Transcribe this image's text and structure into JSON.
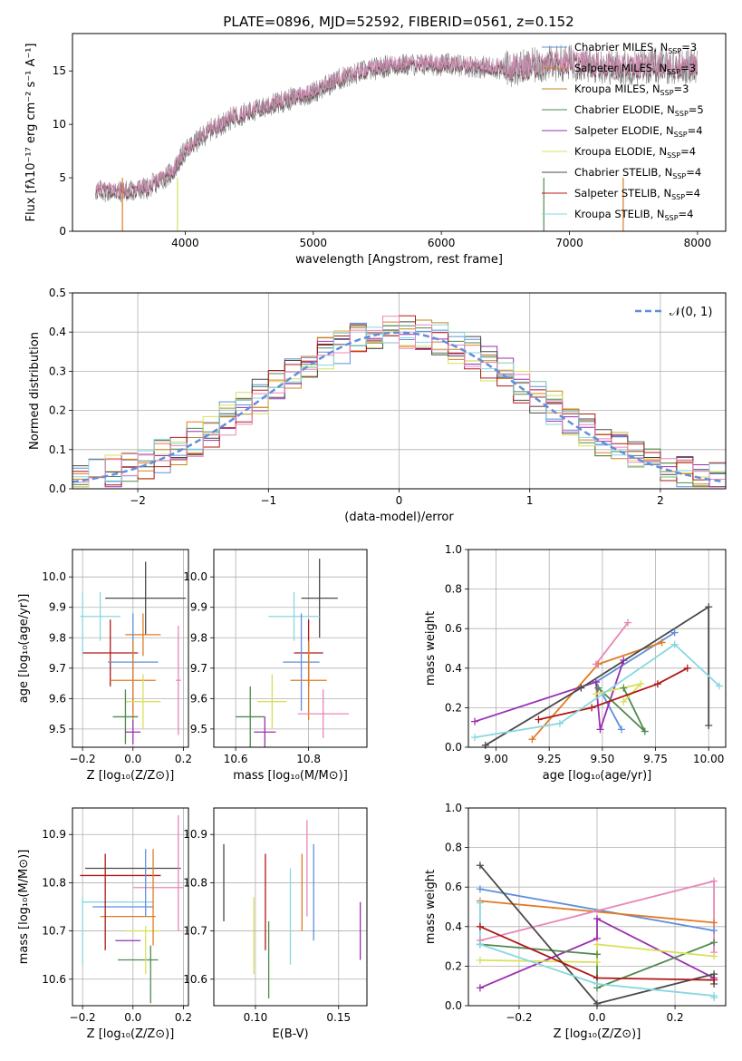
{
  "figure_title": "PLATE=0896, MJD=52592, FIBERID=0561, z=0.152",
  "model_colors": [
    "#5f8fdc",
    "#e07b22",
    "#c08a20",
    "#4f8a4f",
    "#9a2fb0",
    "#d8e05a",
    "#4a4a4a",
    "#b01818",
    "#87d7df",
    "#e887b8"
  ],
  "chart_data": [
    {
      "id": "spectrum",
      "type": "line",
      "xlabel": "wavelength [Angstrom, rest frame]",
      "ylabel": "Flux [fλ10⁻¹⁷ erg cm⁻² s⁻¹ A⁻¹]",
      "xlim": [
        3120,
        8220
      ],
      "ylim": [
        0,
        18.5
      ],
      "xticks": [
        4000,
        5000,
        6000,
        7000,
        8000
      ],
      "yticks": [
        0,
        5,
        10,
        15
      ],
      "spectrum_wavelength_range": [
        3300,
        8000
      ],
      "spectrum_shape": {
        "x": [
          3300,
          3500,
          3700,
          3900,
          4000,
          4200,
          4400,
          4600,
          4800,
          5000,
          5200,
          5400,
          5600,
          5800,
          6000,
          6200,
          6400,
          6600,
          6800,
          7000,
          7200,
          7400,
          7600,
          8000
        ],
        "y": [
          3.8,
          3.7,
          4.0,
          5.5,
          7.5,
          9.5,
          10.8,
          11.5,
          12.3,
          13.0,
          14.2,
          15.0,
          15.5,
          15.6,
          15.6,
          15.5,
          15.3,
          15.2,
          15.6,
          15.8,
          15.5,
          15.3,
          15.5,
          15.4
        ]
      },
      "legend_position": "upper right",
      "legend": [
        {
          "label": "Chabrier MILES, N",
          "sub": "SSP",
          "suffix": "=3",
          "color": "#5f8fdc"
        },
        {
          "label": "Salpeter MILES, N",
          "sub": "SSP",
          "suffix": "=3",
          "color": "#e07b22"
        },
        {
          "label": "Kroupa MILES, N",
          "sub": "SSP",
          "suffix": "=3",
          "color": "#c08a20"
        },
        {
          "label": "Chabrier ELODIE, N",
          "sub": "SSP",
          "suffix": "=5",
          "color": "#4f8a4f"
        },
        {
          "label": "Salpeter ELODIE, N",
          "sub": "SSP",
          "suffix": "=4",
          "color": "#9a2fb0"
        },
        {
          "label": "Kroupa ELODIE, N",
          "sub": "SSP",
          "suffix": "=4",
          "color": "#d8e05a"
        },
        {
          "label": "Chabrier STELIB, N",
          "sub": "SSP",
          "suffix": "=4",
          "color": "#4a4a4a"
        },
        {
          "label": "Salpeter STELIB, N",
          "sub": "SSP",
          "suffix": "=4",
          "color": "#b01818"
        },
        {
          "label": "Kroupa STELIB, N",
          "sub": "SSP",
          "suffix": "=4",
          "color": "#87d7df"
        }
      ]
    },
    {
      "id": "residuals",
      "type": "histogram",
      "xlabel": "(data-model)/error",
      "ylabel": "Normed distribution",
      "xlim": [
        -2.5,
        2.5
      ],
      "ylim": [
        0,
        0.5
      ],
      "xticks": [
        -2,
        -1,
        0,
        1,
        2
      ],
      "xtick_labels": [
        "−2",
        "−1",
        "0",
        "1",
        "2"
      ],
      "yticks": [
        0,
        0.1,
        0.2,
        0.3,
        0.4,
        0.5
      ],
      "ytick_labels": [
        "0.0",
        "0.1",
        "0.2",
        "0.3",
        "0.4",
        "0.5"
      ],
      "grid": true,
      "bin_width": 0.125,
      "reference_curve": {
        "label": "𝒩(0, 1)",
        "mean": 0,
        "sigma": 1,
        "style": "dashed",
        "color": "#5f8fdc"
      },
      "legend_position": "upper right"
    },
    {
      "id": "age_vs_Z",
      "type": "errorbar",
      "xlabel": "Z [log₁₀(Z/Z⊙)]",
      "ylabel": "age  [log₁₀(age/yr)]",
      "xlim": [
        -0.24,
        0.22
      ],
      "ylim": [
        9.44,
        10.09
      ],
      "xticks": [
        -0.2,
        0.0,
        0.2
      ],
      "xtick_labels": [
        "−0.2",
        "0.0",
        "0.2"
      ],
      "yticks": [
        9.5,
        9.6,
        9.7,
        9.8,
        9.9,
        10.0
      ],
      "ytick_labels": [
        "9.5",
        "9.6",
        "9.7",
        "9.8",
        "9.9",
        "10.0"
      ],
      "grid": true,
      "points": [
        {
          "x": 0.05,
          "y": 9.93,
          "xerr": 0.16,
          "yerr": 0.12,
          "color": "#4a4a4a"
        },
        {
          "x": -0.13,
          "y": 9.87,
          "xerr": 0.08,
          "yerr": 0.08,
          "color": "#87d7df"
        },
        {
          "x": 0.04,
          "y": 9.81,
          "xerr": 0.07,
          "yerr": 0.07,
          "color": "#e07b22"
        },
        {
          "x": -0.09,
          "y": 9.75,
          "xerr": 0.11,
          "yerr": 0.11,
          "color": "#b01818"
        },
        {
          "x": 0.0,
          "y": 9.72,
          "xerr": 0.1,
          "yerr": 0.16,
          "color": "#5f8fdc"
        },
        {
          "x": 0.0,
          "y": 9.66,
          "xerr": 0.09,
          "yerr": 0.13,
          "color": "#e07b22"
        },
        {
          "x": 0.18,
          "y": 9.66,
          "xerr": 0.01,
          "yerr": 0.18,
          "color": "#e887b8"
        },
        {
          "x": 0.04,
          "y": 9.59,
          "xerr": 0.07,
          "yerr": 0.09,
          "color": "#d8e05a"
        },
        {
          "x": -0.03,
          "y": 9.54,
          "xerr": 0.05,
          "yerr": 0.09,
          "color": "#4f8a4f"
        },
        {
          "x": 0.0,
          "y": 9.49,
          "xerr": 0.03,
          "yerr": 0.04,
          "color": "#9a2fb0"
        },
        {
          "x": -0.2,
          "y": 9.85,
          "xerr": 0.0,
          "yerr": 0.1,
          "color": "#87d7df"
        }
      ]
    },
    {
      "id": "age_vs_mass",
      "type": "errorbar",
      "xlabel": "mass [log₁₀(M/M⊙)]",
      "ylabel": "",
      "xlim": [
        10.54,
        10.96
      ],
      "ylim": [
        9.44,
        10.09
      ],
      "xticks": [
        10.6,
        10.8
      ],
      "xtick_labels": [
        "10.6",
        "10.8"
      ],
      "yticks": [
        9.5,
        9.6,
        9.7,
        9.8,
        9.9,
        10.0
      ],
      "ytick_labels": [
        "9.5",
        "9.6",
        "9.7",
        "9.8",
        "9.9",
        "10.0"
      ],
      "grid": true,
      "points": [
        {
          "x": 10.83,
          "y": 9.93,
          "xerr": 0.05,
          "yerr": 0.13,
          "color": "#4a4a4a"
        },
        {
          "x": 10.76,
          "y": 9.87,
          "xerr": 0.07,
          "yerr": 0.08,
          "color": "#87d7df"
        },
        {
          "x": 10.8,
          "y": 9.75,
          "xerr": 0.04,
          "yerr": 0.11,
          "color": "#b01818"
        },
        {
          "x": 10.78,
          "y": 9.72,
          "xerr": 0.05,
          "yerr": 0.16,
          "color": "#5f8fdc"
        },
        {
          "x": 10.8,
          "y": 9.66,
          "xerr": 0.05,
          "yerr": 0.13,
          "color": "#e07b22"
        },
        {
          "x": 10.7,
          "y": 9.59,
          "xerr": 0.04,
          "yerr": 0.09,
          "color": "#d8e05a"
        },
        {
          "x": 10.84,
          "y": 9.55,
          "xerr": 0.07,
          "yerr": 0.08,
          "color": "#e887b8"
        },
        {
          "x": 10.64,
          "y": 9.54,
          "xerr": 0.04,
          "yerr": 0.1,
          "color": "#4f8a4f"
        },
        {
          "x": 10.68,
          "y": 9.49,
          "xerr": 0.03,
          "yerr": 0.05,
          "color": "#9a2fb0"
        }
      ]
    },
    {
      "id": "weight_vs_age",
      "type": "line",
      "xlabel": "age  [log₁₀(age/yr)]",
      "ylabel": "mass weight",
      "xlim": [
        8.87,
        10.08
      ],
      "ylim": [
        0,
        1
      ],
      "xticks": [
        9.0,
        9.25,
        9.5,
        9.75,
        10.0
      ],
      "xtick_labels": [
        "9.00",
        "9.25",
        "9.50",
        "9.75",
        "10.00"
      ],
      "yticks": [
        0,
        0.2,
        0.4,
        0.6,
        0.8,
        1.0
      ],
      "ytick_labels": [
        "0.0",
        "0.2",
        "0.4",
        "0.6",
        "0.8",
        "1.0"
      ],
      "grid": true,
      "series": [
        {
          "color": "#5f8fdc",
          "x": [
            9.84,
            9.47,
            9.59
          ],
          "y": [
            0.58,
            0.33,
            0.09
          ]
        },
        {
          "color": "#e07b22",
          "x": [
            9.17,
            9.48,
            9.78
          ],
          "y": [
            0.04,
            0.42,
            0.53
          ]
        },
        {
          "color": "#9a2fb0",
          "x": [
            8.9,
            9.47,
            9.49,
            9.6
          ],
          "y": [
            0.13,
            0.33,
            0.09,
            0.44
          ]
        },
        {
          "color": "#4f8a4f",
          "x": [
            9.6,
            9.7,
            9.48
          ],
          "y": [
            0.3,
            0.08,
            0.3
          ]
        },
        {
          "color": "#d8e05a",
          "x": [
            9.6,
            9.68,
            9.47
          ],
          "y": [
            0.23,
            0.32,
            0.27
          ]
        },
        {
          "color": "#4a4a4a",
          "x": [
            8.95,
            9.4,
            10.0,
            10.0
          ],
          "y": [
            0.01,
            0.3,
            0.71,
            0.11
          ]
        },
        {
          "color": "#b01818",
          "x": [
            9.2,
            9.45,
            9.76,
            9.9
          ],
          "y": [
            0.14,
            0.2,
            0.32,
            0.4
          ]
        },
        {
          "color": "#87d7df",
          "x": [
            8.9,
            9.3,
            9.84,
            10.05
          ],
          "y": [
            0.05,
            0.12,
            0.52,
            0.31
          ]
        },
        {
          "color": "#e887b8",
          "x": [
            9.47,
            9.62
          ],
          "y": [
            0.42,
            0.63
          ]
        }
      ]
    },
    {
      "id": "mass_vs_Z",
      "type": "errorbar",
      "xlabel": "Z [log₁₀(Z/Z⊙)]",
      "ylabel": "mass [log₁₀(M/M⊙)]",
      "xlim": [
        -0.24,
        0.22
      ],
      "ylim": [
        10.545,
        10.955
      ],
      "xticks": [
        -0.2,
        0.0,
        0.2
      ],
      "xtick_labels": [
        "−0.2",
        "0.0",
        "0.2"
      ],
      "yticks": [
        10.6,
        10.7,
        10.8,
        10.9
      ],
      "ytick_labels": [
        "10.6",
        "10.7",
        "10.8",
        "10.9"
      ],
      "grid": true,
      "points": [
        {
          "x": 0.0,
          "y": 10.83,
          "xerr": 0.19,
          "yerr": 0.0,
          "color": "#4a4a4a"
        },
        {
          "x": -0.05,
          "y": 10.815,
          "xerr": 0.16,
          "yerr": 0.0,
          "color": "#b01818"
        },
        {
          "x": 0.1,
          "y": 10.79,
          "xerr": 0.1,
          "yerr": 0.0,
          "color": "#e887b8"
        },
        {
          "x": -0.06,
          "y": 10.76,
          "xerr": 0.14,
          "yerr": 0.0,
          "color": "#87d7df"
        },
        {
          "x": -0.04,
          "y": 10.75,
          "xerr": 0.12,
          "yerr": 0.0,
          "color": "#5f8fdc"
        },
        {
          "x": -0.02,
          "y": 10.73,
          "xerr": 0.11,
          "yerr": 0.0,
          "color": "#e07b22"
        },
        {
          "x": 0.04,
          "y": 10.7,
          "xerr": 0.07,
          "yerr": 0.0,
          "color": "#d8e05a"
        },
        {
          "x": -0.02,
          "y": 10.68,
          "xerr": 0.05,
          "yerr": 0.0,
          "color": "#9a2fb0"
        },
        {
          "x": 0.02,
          "y": 10.64,
          "xerr": 0.08,
          "yerr": 0.0,
          "color": "#4f8a4f"
        },
        {
          "x": -0.11,
          "y": 10.76,
          "xerr": 0.0,
          "yerr": 0.1,
          "color": "#b01818"
        },
        {
          "x": 0.05,
          "y": 10.8,
          "xerr": 0.0,
          "yerr": 0.07,
          "color": "#5f8fdc"
        },
        {
          "x": 0.08,
          "y": 10.77,
          "xerr": 0.0,
          "yerr": 0.1,
          "color": "#e07b22"
        },
        {
          "x": 0.18,
          "y": 10.82,
          "xerr": 0.0,
          "yerr": 0.12,
          "color": "#e887b8"
        },
        {
          "x": 0.07,
          "y": 10.61,
          "xerr": 0.0,
          "yerr": 0.06,
          "color": "#4f8a4f"
        },
        {
          "x": 0.05,
          "y": 10.66,
          "xerr": 0.0,
          "yerr": 0.05,
          "color": "#d8e05a"
        },
        {
          "x": -0.2,
          "y": 10.7,
          "xerr": 0.0,
          "yerr": 0.07,
          "color": "#87d7df"
        }
      ]
    },
    {
      "id": "mass_vs_EBV",
      "type": "errorbar",
      "xlabel": "E(B-V)",
      "ylabel": "",
      "xlim": [
        0.075,
        0.167
      ],
      "ylim": [
        10.545,
        10.955
      ],
      "xticks": [
        0.1,
        0.15
      ],
      "xtick_labels": [
        "0.10",
        "0.15"
      ],
      "yticks": [
        10.6,
        10.7,
        10.8,
        10.9
      ],
      "ytick_labels": [
        "10.6",
        "10.7",
        "10.8",
        "10.9"
      ],
      "grid": true,
      "points": [
        {
          "x": 0.081,
          "y": 10.8,
          "xerr": 0.0,
          "yerr": 0.08,
          "color": "#4a4a4a"
        },
        {
          "x": 0.099,
          "y": 10.69,
          "xerr": 0.0,
          "yerr": 0.08,
          "color": "#d8e05a"
        },
        {
          "x": 0.106,
          "y": 10.76,
          "xerr": 0.0,
          "yerr": 0.1,
          "color": "#b01818"
        },
        {
          "x": 0.108,
          "y": 10.64,
          "xerr": 0.0,
          "yerr": 0.08,
          "color": "#4f8a4f"
        },
        {
          "x": 0.121,
          "y": 10.73,
          "xerr": 0.0,
          "yerr": 0.1,
          "color": "#87d7df"
        },
        {
          "x": 0.128,
          "y": 10.78,
          "xerr": 0.0,
          "yerr": 0.08,
          "color": "#e07b22"
        },
        {
          "x": 0.131,
          "y": 10.83,
          "xerr": 0.0,
          "yerr": 0.1,
          "color": "#e887b8"
        },
        {
          "x": 0.135,
          "y": 10.78,
          "xerr": 0.0,
          "yerr": 0.1,
          "color": "#5f8fdc"
        },
        {
          "x": 0.163,
          "y": 10.7,
          "xerr": 0.0,
          "yerr": 0.06,
          "color": "#9a2fb0"
        }
      ]
    },
    {
      "id": "weight_vs_Z",
      "type": "line",
      "xlabel": "Z [log₁₀(Z/Z⊙)]",
      "ylabel": "mass weight",
      "xlim": [
        -0.33,
        0.33
      ],
      "ylim": [
        0,
        1
      ],
      "xticks": [
        -0.2,
        0.0,
        0.2
      ],
      "xtick_labels": [
        "−0.2",
        "0.0",
        "0.2"
      ],
      "yticks": [
        0,
        0.2,
        0.4,
        0.6,
        0.8,
        1.0
      ],
      "ytick_labels": [
        "0.0",
        "0.2",
        "0.4",
        "0.6",
        "0.8",
        "1.0"
      ],
      "grid": true,
      "series": [
        {
          "color": "#5f8fdc",
          "x": [
            -0.3,
            0.3
          ],
          "y": [
            0.59,
            0.38
          ]
        },
        {
          "color": "#e07b22",
          "x": [
            -0.3,
            0.3
          ],
          "y": [
            0.53,
            0.42
          ]
        },
        {
          "color": "#e887b8",
          "x": [
            -0.3,
            0.3,
            0.3
          ],
          "y": [
            0.33,
            0.63,
            0.27
          ]
        },
        {
          "color": "#9a2fb0",
          "x": [
            -0.3,
            0.0,
            0.0,
            0.3
          ],
          "y": [
            0.09,
            0.34,
            0.44,
            0.14
          ]
        },
        {
          "color": "#4f8a4f",
          "x": [
            -0.3,
            0.0,
            0.0,
            0.3
          ],
          "y": [
            0.31,
            0.26,
            0.09,
            0.32
          ]
        },
        {
          "color": "#d8e05a",
          "x": [
            -0.3,
            0.0,
            0.0,
            0.3
          ],
          "y": [
            0.23,
            0.22,
            0.31,
            0.25
          ]
        },
        {
          "color": "#4a4a4a",
          "x": [
            -0.3,
            0.0,
            0.3,
            0.3
          ],
          "y": [
            0.71,
            0.01,
            0.16,
            0.11
          ]
        },
        {
          "color": "#b01818",
          "x": [
            -0.3,
            0.0,
            0.3
          ],
          "y": [
            0.4,
            0.14,
            0.13
          ]
        },
        {
          "color": "#87d7df",
          "x": [
            -0.3,
            -0.3,
            0.0,
            0.3,
            0.3
          ],
          "y": [
            0.52,
            0.31,
            0.11,
            0.05,
            0.04
          ]
        }
      ]
    }
  ]
}
